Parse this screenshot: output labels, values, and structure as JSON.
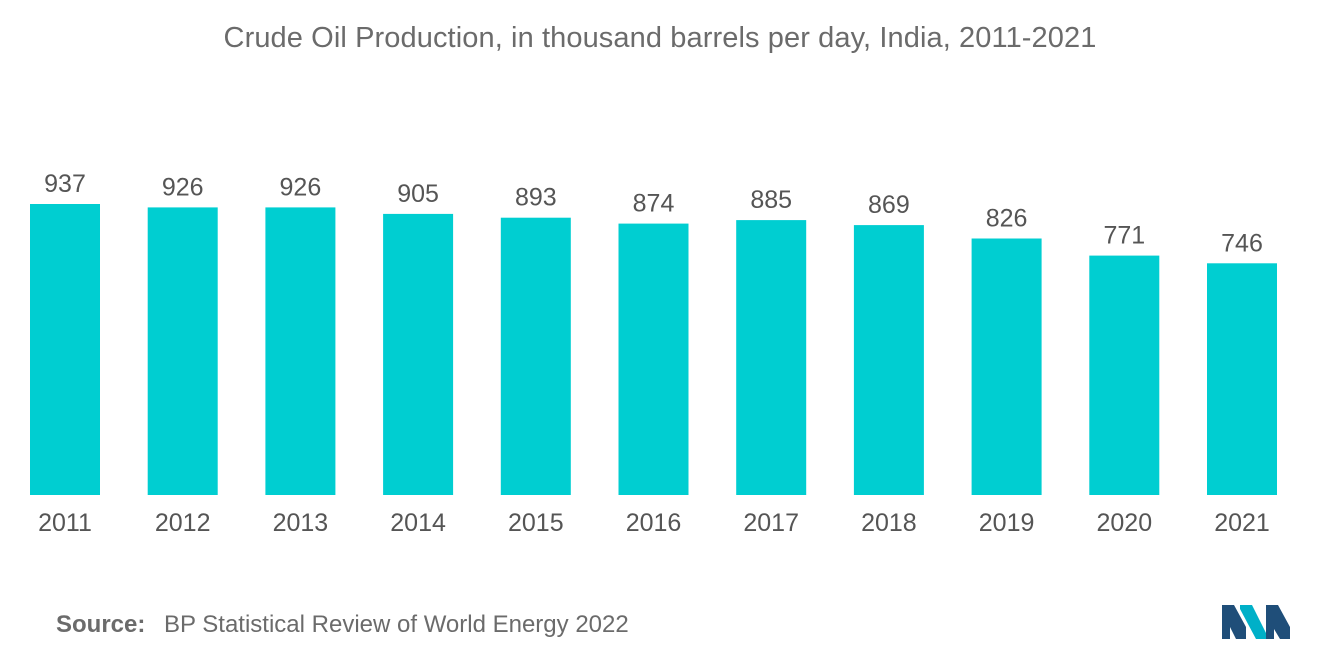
{
  "chart_data": {
    "type": "bar",
    "title": "Crude Oil Production, in thousand barrels per day, India, 2011-2021",
    "categories": [
      "2011",
      "2012",
      "2013",
      "2014",
      "2015",
      "2016",
      "2017",
      "2018",
      "2019",
      "2020",
      "2021"
    ],
    "values": [
      937,
      926,
      926,
      905,
      893,
      874,
      885,
      869,
      826,
      771,
      746
    ],
    "xlabel": "",
    "ylabel": "",
    "ylim": [
      0,
      937
    ],
    "grid": false,
    "legend": "none",
    "bar_color": "#00ced1",
    "data_labels": true
  },
  "source": {
    "label": "Source:",
    "text": "BP Statistical Review of World Energy 2022"
  },
  "logo": {
    "icon": "mordor-intelligence-logo-icon",
    "colors": [
      "#1f4e79",
      "#00b0c8"
    ]
  }
}
